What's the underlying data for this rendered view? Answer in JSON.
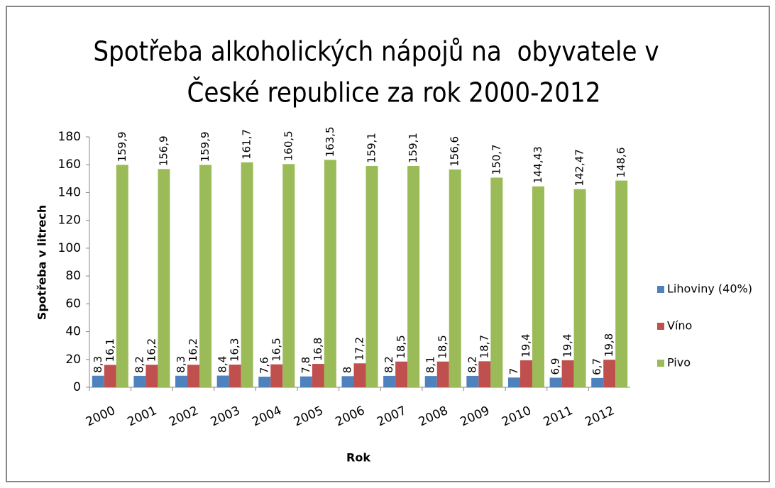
{
  "chart_data": {
    "type": "bar",
    "title": [
      "Spotřeba alkoholických nápojů na  obyvatele v",
      "České republice za rok 2000-2012"
    ],
    "x_label": "Rok",
    "y_label": "Spotřeba v litrech",
    "categories": [
      "2000",
      "2001",
      "2002",
      "2003",
      "2004",
      "2005",
      "2006",
      "2007",
      "2008",
      "2009",
      "2010",
      "2011",
      "2012"
    ],
    "series": [
      {
        "name": "Lihoviny (40%)",
        "color": "#4f81bd",
        "values": [
          8.3,
          8.2,
          8.3,
          8.4,
          7.6,
          7.8,
          8,
          8.2,
          8.1,
          8.2,
          7,
          6.9,
          6.7
        ],
        "value_labels": [
          "8,3",
          "8,2",
          "8,3",
          "8,4",
          "7,6",
          "7,8",
          "8",
          "8,2",
          "8,1",
          "8,2",
          "7",
          "6,9",
          "6,7"
        ]
      },
      {
        "name": "Víno",
        "color": "#c0504d",
        "values": [
          16.1,
          16.2,
          16.2,
          16.3,
          16.5,
          16.8,
          17.2,
          18.5,
          18.5,
          18.7,
          19.4,
          19.4,
          19.8
        ],
        "value_labels": [
          "16,1",
          "16,2",
          "16,2",
          "16,3",
          "16,5",
          "16,8",
          "17,2",
          "18,5",
          "18,5",
          "18,7",
          "19,4",
          "19,4",
          "19,8"
        ]
      },
      {
        "name": "Pivo",
        "color": "#9bbb59",
        "values": [
          159.9,
          156.9,
          159.9,
          161.7,
          160.5,
          163.5,
          159.1,
          159.1,
          156.6,
          150.7,
          144.43,
          142.47,
          148.6
        ],
        "value_labels": [
          "159,9",
          "156,9",
          "159,9",
          "161,7",
          "160,5",
          "163,5",
          "159,1",
          "159,1",
          "156,6",
          "150,7",
          "144,43",
          "142,47",
          "148,6"
        ]
      }
    ],
    "ylim": [
      0,
      180
    ],
    "yticks": [
      0,
      20,
      40,
      60,
      80,
      100,
      120,
      140,
      160,
      180
    ],
    "legend": "right"
  }
}
